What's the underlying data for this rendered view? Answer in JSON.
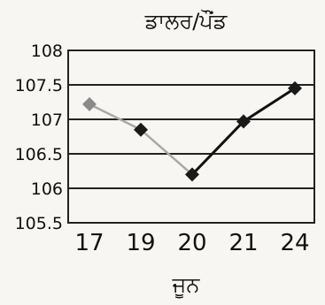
{
  "chart_data": {
    "type": "line",
    "title": "ਡਾਲਰ/ਪੌਂਡ",
    "xlabel": "ਜੂਨ",
    "ylabel": "",
    "categories": [
      "17",
      "19",
      "20",
      "21",
      "24"
    ],
    "series": [
      {
        "values": [
          107.22,
          106.85,
          106.2,
          106.97,
          107.45
        ]
      }
    ],
    "ylim": [
      105.5,
      108
    ],
    "yticks": [
      "105.5",
      "106",
      "106.5",
      "107",
      "107.5",
      "108"
    ],
    "grid": "horizontal",
    "legend": "none",
    "colors": {
      "line_faded": "#a8a8a8",
      "line": "#111111",
      "marker": "#1a1a1a",
      "marker_faded": "#8a8a8a",
      "grid": "#222222"
    }
  }
}
